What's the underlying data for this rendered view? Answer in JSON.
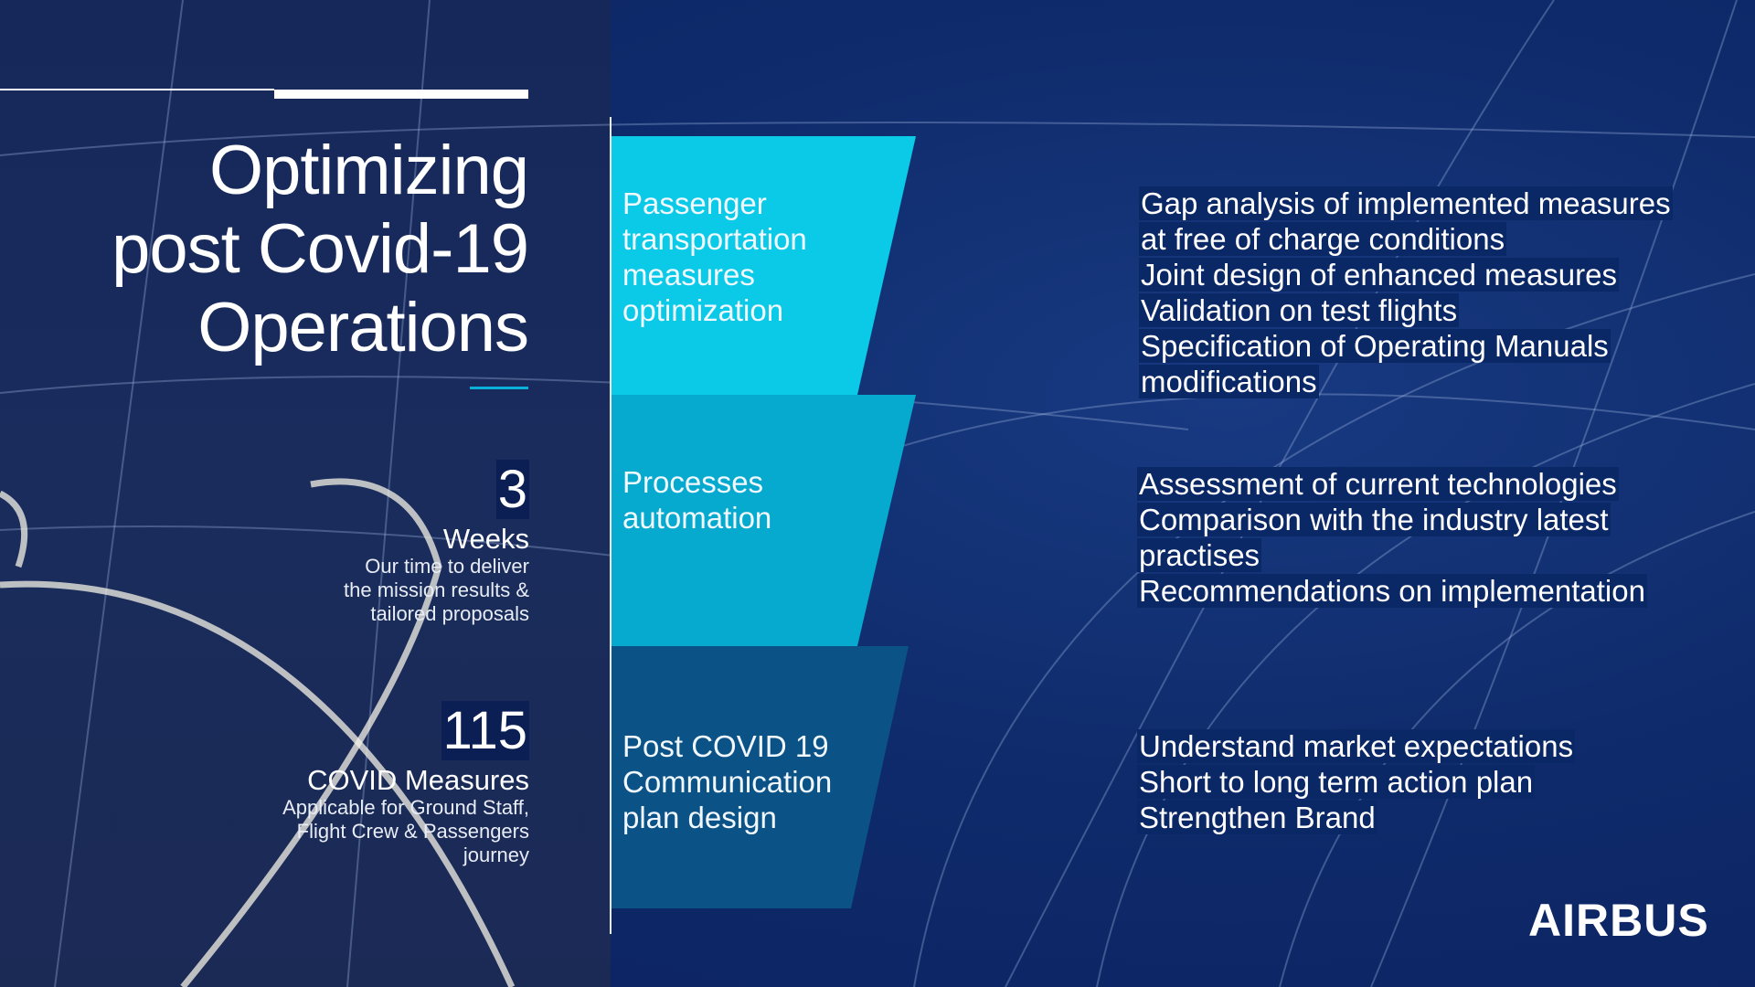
{
  "title": "Optimizing\npost Covid-19\nOperations",
  "stats": [
    {
      "number": "3",
      "label": "Weeks",
      "description": "Our time to deliver\nthe mission results &\ntailored proposals"
    },
    {
      "number": "115",
      "label": "COVID Measures",
      "description": "Applicable for Ground Staff,\nFlight Crew & Passengers\njourney"
    }
  ],
  "stages": [
    {
      "label": "Passenger\ntransportation\nmeasures\noptimization",
      "color": "#0ACAE8",
      "details": [
        "Gap analysis of implemented measures",
        "at free of charge conditions",
        "Joint design of enhanced measures",
        "Validation on test flights",
        "Specification of Operating Manuals",
        "modifications"
      ]
    },
    {
      "label": "Processes\nautomation",
      "color": "#06AACF",
      "details": [
        "Assessment of current technologies",
        "Comparison with the industry latest",
        "practises",
        "Recommendations on implementation"
      ]
    },
    {
      "label": "Post COVID 19\nCommunication\nplan design",
      "color": "#0B5286",
      "details": [
        "Understand market expectations",
        "Short to long term action plan",
        "Strengthen Brand"
      ]
    }
  ],
  "logo": "AIRBUS",
  "colors": {
    "background": "#0F2B6B",
    "accent": "#0AB0D8",
    "highlight": "#0A2766"
  }
}
